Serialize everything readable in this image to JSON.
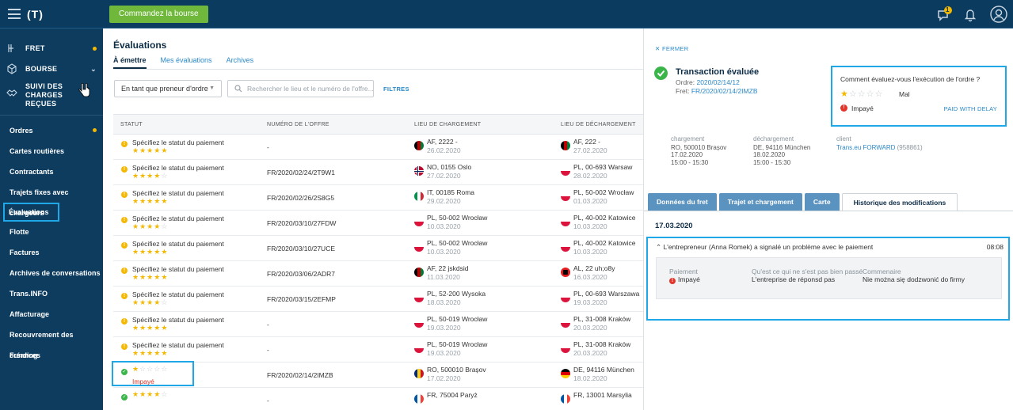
{
  "topbar": {
    "logo": "(T)",
    "cta_label": "Commandez la bourse",
    "notification_count": "1",
    "icons": [
      "menu-icon",
      "chat-icon",
      "bell-icon",
      "user-avatar-icon"
    ]
  },
  "sidebar": {
    "top": [
      {
        "label": "FRET",
        "icon": "freight-icon",
        "dot": true
      },
      {
        "label": "BOURSE",
        "icon": "cube-icon",
        "chevron": "⌄"
      },
      {
        "label": "SUIVI DES CHARGES REÇUES",
        "icon": "handshake-icon"
      }
    ],
    "nav": [
      {
        "label": "Ordres",
        "dot": true
      },
      {
        "label": "Cartes routières"
      },
      {
        "label": "Contractants"
      },
      {
        "label": "Trajets fixes avec chargeurs"
      },
      {
        "label": "Évaluations",
        "active": true
      },
      {
        "label": "Flotte"
      },
      {
        "label": "Factures"
      },
      {
        "label": "Archives de conversations"
      },
      {
        "label": "Trans.INFO"
      },
      {
        "label": "Affacturage"
      },
      {
        "label": "Recouvrement des créances"
      },
      {
        "label": "Funding"
      }
    ]
  },
  "main": {
    "title": "Évaluations",
    "tabs": [
      {
        "label": "À émettre",
        "active": true
      },
      {
        "label": "Mes évaluations"
      },
      {
        "label": "Archives"
      }
    ],
    "filter_select": "En tant que preneur d'ordre",
    "search_placeholder": "Rechercher le lieu et le numéro de l'offre...",
    "filters_label": "FILTRES",
    "columns": [
      "STATUT",
      "NUMÉRO DE L'OFFRE",
      "LIEU DE CHARGEMENT",
      "LIEU DE DÉCHARGEMENT"
    ],
    "rows": [
      {
        "status": "Spécifiez le statut du paiement",
        "stars": 5,
        "offer": "-",
        "load_place": "AF, 2222 -",
        "load_date": "26.02.2020",
        "load_flag": "af",
        "unload_place": "AF, 222 -",
        "unload_date": "27.02.2020",
        "unload_flag": "af"
      },
      {
        "status": "Spécifiez le statut du paiement",
        "stars": 4,
        "offer": "FR/2020/02/24/2T9W1",
        "load_place": "NO, 0155 Oslo",
        "load_date": "27.02.2020",
        "load_flag": "no",
        "unload_place": "PL, 00-693 Warsaw",
        "unload_date": "28.02.2020",
        "unload_flag": "pl"
      },
      {
        "status": "Spécifiez le statut du paiement",
        "stars": 5,
        "offer": "FR/2020/02/26/2S8G5",
        "load_place": "IT, 00185 Roma",
        "load_date": "29.02.2020",
        "load_flag": "it",
        "unload_place": "PL, 50-002 Wrocław",
        "unload_date": "01.03.2020",
        "unload_flag": "pl"
      },
      {
        "status": "Spécifiez le statut du paiement",
        "stars": 4,
        "offer": "FR/2020/03/10/27FDW",
        "load_place": "PL, 50-002 Wrocław",
        "load_date": "10.03.2020",
        "load_flag": "pl",
        "unload_place": "PL, 40-002 Katowice",
        "unload_date": "10.03.2020",
        "unload_flag": "pl"
      },
      {
        "status": "Spécifiez le statut du paiement",
        "stars": 5,
        "offer": "FR/2020/03/10/27UCE",
        "load_place": "PL, 50-002 Wrocław",
        "load_date": "10.03.2020",
        "load_flag": "pl",
        "unload_place": "PL, 40-002 Katowice",
        "unload_date": "10.03.2020",
        "unload_flag": "pl"
      },
      {
        "status": "Spécifiez le statut du paiement",
        "stars": 5,
        "offer": "FR/2020/03/06/2ADR7",
        "load_place": "AF, 22 jskdsid",
        "load_date": "11.03.2020",
        "load_flag": "af",
        "unload_place": "AL, 22 uh;o8y",
        "unload_date": "16.03.2020",
        "unload_flag": "al"
      },
      {
        "status": "Spécifiez le statut du paiement",
        "stars": 4,
        "offer": "FR/2020/03/15/2EFMP",
        "load_place": "PL, 52-200 Wysoka",
        "load_date": "18.03.2020",
        "load_flag": "pl",
        "unload_place": "PL, 00-693 Warszawa",
        "unload_date": "19.03.2020",
        "unload_flag": "pl"
      },
      {
        "status": "Spécifiez le statut du paiement",
        "stars": 5,
        "offer": "-",
        "load_place": "PL, 50-019 Wrocław",
        "load_date": "19.03.2020",
        "load_flag": "pl",
        "unload_place": "PL, 31-008 Kraków",
        "unload_date": "20.03.2020",
        "unload_flag": "pl"
      },
      {
        "status": "Spécifiez le statut du paiement",
        "stars": 5,
        "offer": "-",
        "load_place": "PL, 50-019 Wrocław",
        "load_date": "19.03.2020",
        "load_flag": "pl",
        "unload_place": "PL, 31-008 Kraków",
        "unload_date": "20.03.2020",
        "unload_flag": "pl"
      },
      {
        "status": "",
        "stars": 1,
        "paid": "Impayé",
        "done": true,
        "highlight": true,
        "offer": "FR/2020/02/14/2IMZB",
        "load_place": "RO, 500010 Brașov",
        "load_date": "17.02.2020",
        "load_flag": "ro",
        "unload_place": "DE, 94116 München",
        "unload_date": "18.02.2020",
        "unload_flag": "de"
      },
      {
        "status": "",
        "stars": 4,
        "done": true,
        "offer": "-",
        "load_place": "FR, 75004 Paryż",
        "load_date": "",
        "load_flag": "fr",
        "unload_place": "FR, 13001 Marsylia",
        "unload_date": "",
        "unload_flag": "fr"
      }
    ]
  },
  "panel": {
    "close_label": "FERMER",
    "title": "Transaction évaluée",
    "order_label": "Ordre:",
    "order_value": "2020/02/14/12",
    "freight_label": "Fret:",
    "freight_value": "FR/2020/02/14/2IMZB",
    "rating": {
      "question": "Comment évaluez-vous l'exécution de l'ordre ?",
      "stars": 1,
      "stars_label": "Mal",
      "status": "Impayé",
      "paid_with_delay": "PAID WITH DELAY"
    },
    "info": {
      "loading_label": "chargement",
      "loading_place": "RO, 500010 Brașov",
      "loading_date": "17.02.2020",
      "loading_time": "15:00 - 15:30",
      "unloading_label": "déchargement",
      "unloading_place": "DE, 94116 München",
      "unloading_date": "18.02.2020",
      "unloading_time": "15:00 - 15:30",
      "client_label": "client",
      "client_name": "Trans.eu FORWARD",
      "client_id": "(958861)"
    },
    "tabs": [
      {
        "label": "Données du fret"
      },
      {
        "label": "Trajet et chargement"
      },
      {
        "label": "Carte"
      },
      {
        "label": "Historique des modifications",
        "active": true
      }
    ],
    "history": {
      "date": "17.03.2020",
      "entry_title": "L'entrepreneur (Anna Romek) a signalé un problème avec le paiement",
      "entry_time": "08:08",
      "payment_label": "Paiement",
      "payment_value": "Impayé",
      "issue_label": "Qu'est ce qui ne s'est pas bien passé",
      "issue_value": "L'entreprise de réponsd pas",
      "comment_label": "Commenaire",
      "comment_value": "Nie można się dodzwonić do firmy"
    }
  },
  "colors": {
    "sidebar": "#0d3c5f",
    "accent": "#1fa8e8",
    "star": "#f5b800",
    "error": "#e2352b",
    "ok": "#3ab54a",
    "cta": "#6fb83b"
  }
}
